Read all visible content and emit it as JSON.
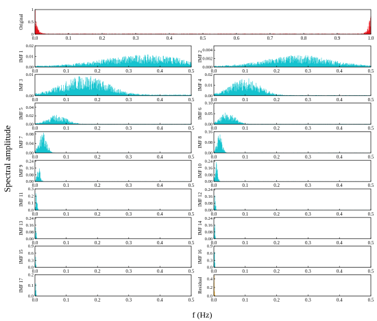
{
  "figure": {
    "ylabel": "Spectral amplitude",
    "xlabel": "f (Hz)"
  },
  "colors": {
    "original": "#e8141c",
    "imf": "#15c3cf",
    "residual": "#f4ab22",
    "axis": "#000000"
  },
  "chart_data": [
    {
      "type": "area",
      "series_label": "Original",
      "shape": "two-sided-edges",
      "xlim": [
        0,
        1
      ],
      "ylim": [
        0,
        1
      ],
      "xticks": [
        "0.0",
        "0.1",
        "0.2",
        "0.3",
        "0.4",
        "0.5",
        "0.6",
        "0.7",
        "0.8",
        "0.9",
        "1.0"
      ],
      "yticks": [
        "0",
        "0.5",
        "1"
      ],
      "peak_frequency": [
        0.0,
        1.0
      ],
      "peak_amplitude": 0.95,
      "color": "#e8141c"
    },
    {
      "type": "area",
      "series_label": "IMF 1",
      "shape": "broad",
      "center": 0.35,
      "width": 0.13,
      "floor": 0.0008,
      "xlim": [
        0,
        0.5
      ],
      "ylim": [
        0,
        0.02
      ],
      "xticks": [
        "0.0",
        "0.1",
        "0.2",
        "0.3",
        "0.4",
        "0.5"
      ],
      "yticks": [
        "0.00",
        "0.01",
        "0.02"
      ],
      "peak_amplitude": 0.0095
    },
    {
      "type": "area",
      "series_label": "IMF 2",
      "shape": "broad",
      "center": 0.27,
      "width": 0.1,
      "floor": 0.0002,
      "xlim": [
        0,
        0.5
      ],
      "ylim": [
        0,
        0.005
      ],
      "xticks": [
        "0.0",
        "0.1",
        "0.2",
        "0.3",
        "0.4",
        "0.5"
      ],
      "yticks": [
        "0.000",
        "0.002",
        "0.004"
      ],
      "peak_amplitude": 0.0023
    },
    {
      "type": "area",
      "series_label": "IMF 3",
      "shape": "broad",
      "center": 0.16,
      "width": 0.07,
      "floor": 0.0004,
      "xlim": [
        0,
        0.5
      ],
      "ylim": [
        0,
        0.01
      ],
      "xticks": [
        "0.0",
        "0.1",
        "0.2",
        "0.3",
        "0.4",
        "0.5"
      ],
      "yticks": [
        "0.00",
        "0.01"
      ],
      "peak_amplitude": 0.0078
    },
    {
      "type": "area",
      "series_label": "IMF 4",
      "shape": "broad",
      "center": 0.1,
      "width": 0.045,
      "floor": 0.0004,
      "xlim": [
        0,
        0.5
      ],
      "ylim": [
        0,
        0.02
      ],
      "xticks": [
        "0.0",
        "0.1",
        "0.2",
        "0.3",
        "0.4",
        "0.5"
      ],
      "yticks": [
        "0.00",
        "0.01",
        "0.02"
      ],
      "peak_amplitude": 0.0135
    },
    {
      "type": "area",
      "series_label": "IMF 5",
      "shape": "broad",
      "center": 0.07,
      "width": 0.03,
      "floor": 0.0008,
      "xlim": [
        0,
        0.5
      ],
      "ylim": [
        0,
        0.05
      ],
      "xticks": [
        "0.0",
        "0.1",
        "0.2",
        "0.3",
        "0.4",
        "0.5"
      ],
      "yticks": [
        "0.00",
        "0.02",
        "0.04"
      ],
      "peak_amplitude": 0.018
    },
    {
      "type": "area",
      "series_label": "IMF 6",
      "shape": "broad",
      "center": 0.045,
      "width": 0.022,
      "floor": 0.0015,
      "xlim": [
        0,
        0.5
      ],
      "ylim": [
        0,
        0.1
      ],
      "xticks": [
        "0.0",
        "0.1",
        "0.2",
        "0.3",
        "0.4",
        "0.5"
      ],
      "yticks": [
        "0.00",
        "0.05",
        "0.10"
      ],
      "peak_amplitude": 0.048
    },
    {
      "type": "area",
      "series_label": "IMF 7",
      "shape": "broad",
      "center": 0.025,
      "width": 0.012,
      "floor": 0.001,
      "xlim": [
        0,
        0.5
      ],
      "ylim": [
        0,
        0.09
      ],
      "xticks": [
        "0.0",
        "0.1",
        "0.2",
        "0.3",
        "0.4",
        "0.5"
      ],
      "yticks": [
        "0.00",
        "0.04",
        "0.08"
      ],
      "peak_amplitude": 0.07
    },
    {
      "type": "area",
      "series_label": "IMF 8",
      "shape": "broad",
      "center": 0.018,
      "width": 0.008,
      "floor": 0.002,
      "xlim": [
        0,
        0.5
      ],
      "ylim": [
        0,
        0.16
      ],
      "xticks": [
        "0.0",
        "0.1",
        "0.2",
        "0.3",
        "0.4",
        "0.5"
      ],
      "yticks": [
        "0.00",
        "0.08",
        "0.16"
      ],
      "peak_amplitude": 0.12
    },
    {
      "type": "area",
      "series_label": "IMF 9",
      "shape": "broad",
      "center": 0.012,
      "width": 0.005,
      "floor": 0.002,
      "xlim": [
        0,
        0.5
      ],
      "ylim": [
        0,
        0.25
      ],
      "xticks": [
        "0.0",
        "0.1",
        "0.2",
        "0.3",
        "0.4",
        "0.5"
      ],
      "yticks": [
        "0.00",
        "0.08",
        "0.16",
        "0.24"
      ],
      "peak_amplitude": 0.15
    },
    {
      "type": "area",
      "series_label": "IMF 10",
      "shape": "broad",
      "center": 0.008,
      "width": 0.004,
      "floor": 0.002,
      "xlim": [
        0,
        0.5
      ],
      "ylim": [
        0,
        0.25
      ],
      "xticks": [
        "0.0",
        "0.1",
        "0.2",
        "0.3",
        "0.4",
        "0.5"
      ],
      "yticks": [
        "0.00",
        "0.08",
        "0.16",
        "0.24"
      ],
      "peak_amplitude": 0.2
    },
    {
      "type": "area",
      "series_label": "IMF 11",
      "shape": "spike",
      "center": 0.005,
      "width": 0.002,
      "floor": 0.001,
      "xlim": [
        0,
        0.5
      ],
      "ylim": [
        0,
        0.3
      ],
      "xticks": [
        "0.0",
        "0.1",
        "0.2",
        "0.3",
        "0.4",
        "0.5"
      ],
      "yticks": [
        "0.0",
        "0.1",
        "0.2",
        "0.3"
      ],
      "peak_amplitude": 0.3
    },
    {
      "type": "area",
      "series_label": "IMF 12",
      "shape": "spike",
      "center": 0.004,
      "width": 0.0015,
      "floor": 0.001,
      "xlim": [
        0,
        0.5
      ],
      "ylim": [
        0,
        0.25
      ],
      "xticks": [
        "0.0",
        "0.1",
        "0.2",
        "0.3",
        "0.4",
        "0.5"
      ],
      "yticks": [
        "0.00",
        "0.08",
        "0.16",
        "0.24"
      ],
      "peak_amplitude": 0.19
    },
    {
      "type": "area",
      "series_label": "IMF 13",
      "shape": "spike",
      "center": 0.003,
      "width": 0.0012,
      "floor": 0.001,
      "xlim": [
        0,
        0.5
      ],
      "ylim": [
        0,
        0.25
      ],
      "xticks": [
        "0.0",
        "0.1",
        "0.2",
        "0.3",
        "0.4",
        "0.5"
      ],
      "yticks": [
        "0.00",
        "0.08",
        "0.16",
        "0.24"
      ],
      "peak_amplitude": 0.16
    },
    {
      "type": "area",
      "series_label": "IMF 14",
      "shape": "spike",
      "center": 0.003,
      "width": 0.001,
      "floor": 0.001,
      "xlim": [
        0,
        0.5
      ],
      "ylim": [
        0,
        0.25
      ],
      "xticks": [
        "0.0",
        "0.1",
        "0.2",
        "0.3",
        "0.4",
        "0.5"
      ],
      "yticks": [
        "0.00",
        "0.08",
        "0.16",
        "0.24"
      ],
      "peak_amplitude": 0.23
    },
    {
      "type": "area",
      "series_label": "IMF 15",
      "shape": "spike",
      "center": 0.002,
      "width": 0.001,
      "floor": 0.001,
      "xlim": [
        0,
        0.5
      ],
      "ylim": [
        0,
        0.9
      ],
      "xticks": [
        "0.0",
        "0.1",
        "0.2",
        "0.3",
        "0.4",
        "0.5"
      ],
      "yticks": [
        "0.0",
        "0.3",
        "0.6",
        "0.9"
      ],
      "peak_amplitude": 0.55
    },
    {
      "type": "area",
      "series_label": "IMF 16",
      "shape": "spike",
      "center": 0.002,
      "width": 0.001,
      "floor": 0.001,
      "xlim": [
        0,
        0.5
      ],
      "ylim": [
        0,
        0.9
      ],
      "xticks": [
        "0.0",
        "0.1",
        "0.2",
        "0.3",
        "0.4",
        "0.5"
      ],
      "yticks": [
        "0.0",
        "0.3",
        "0.6",
        "0.9"
      ],
      "peak_amplitude": 0.85
    },
    {
      "type": "area",
      "series_label": "IMF 17",
      "shape": "spike",
      "center": 0.002,
      "width": 0.001,
      "floor": 0.0005,
      "xlim": [
        0,
        0.5
      ],
      "ylim": [
        0,
        0.2
      ],
      "xticks": [
        "0.0",
        "0.1",
        "0.2",
        "0.3",
        "0.4",
        "0.5"
      ],
      "yticks": [
        "0.0",
        "0.1",
        "0.2"
      ],
      "peak_amplitude": 0.19
    },
    {
      "type": "area",
      "series_label": "Residual",
      "shape": "spike",
      "center": 0.001,
      "width": 0.001,
      "floor": 0.0,
      "xlim": [
        0,
        0.5
      ],
      "ylim": [
        0,
        0.5
      ],
      "xticks": [
        "0.0",
        "0.1",
        "0.2",
        "0.3",
        "0.4",
        "0.5"
      ],
      "yticks": [
        "0.0",
        "0.2",
        "0.4"
      ],
      "peak_amplitude": 0.42,
      "color": "#f4ab22"
    }
  ]
}
